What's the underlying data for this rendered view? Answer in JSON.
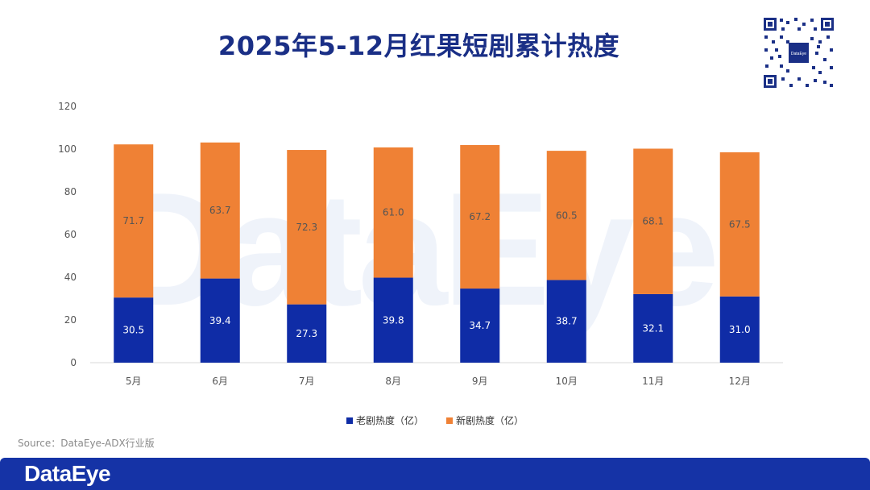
{
  "title": "2025年5-12月红果短剧累计热度",
  "qr_logo_text": "DataEye",
  "watermark_text": "DataEye",
  "footer_logo": "DataEye",
  "source": "Source：DataEye-ADX行业版",
  "colors": {
    "old": "#0f2ca6",
    "new": "#ef8135",
    "title": "#1a2f86",
    "footer": "#1533a6"
  },
  "chart_data": {
    "type": "bar",
    "stacked": true,
    "title": "2025年5-12月红果短剧累计热度",
    "categories": [
      "5月",
      "6月",
      "7月",
      "8月",
      "9月",
      "10月",
      "11月",
      "12月"
    ],
    "series": [
      {
        "name": "老剧热度（亿）",
        "values": [
          30.5,
          39.4,
          27.3,
          39.8,
          34.7,
          38.7,
          32.1,
          31.0
        ]
      },
      {
        "name": "新剧热度（亿）",
        "values": [
          71.7,
          63.7,
          72.3,
          61.0,
          67.2,
          60.5,
          68.1,
          67.5
        ]
      }
    ],
    "ylim": [
      0,
      120
    ],
    "yticks": [
      0,
      20,
      40,
      60,
      80,
      100,
      120
    ],
    "ytick_labels": [
      "0",
      "20",
      "40",
      "60",
      "80",
      "100",
      "120"
    ],
    "value_labels": [
      [
        "30.5",
        "39.4",
        "27.3",
        "39.8",
        "34.7",
        "38.7",
        "32.1",
        "31.0"
      ],
      [
        "71.7",
        "63.7",
        "72.3",
        "61.0",
        "67.2",
        "60.5",
        "68.1",
        "67.5"
      ]
    ],
    "legend_position": "bottom",
    "grid": false
  }
}
